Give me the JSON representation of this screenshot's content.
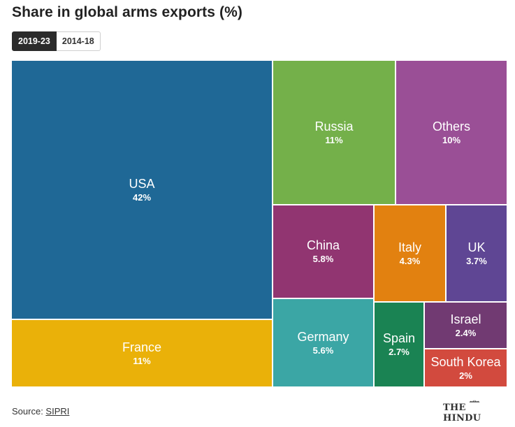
{
  "title": "Share in global arms exports (%)",
  "tabs": [
    {
      "label": "2019-23",
      "active": true
    },
    {
      "label": "2014-18",
      "active": false
    }
  ],
  "source": {
    "prefix": "Source: ",
    "link": "SIPRI"
  },
  "logo": {
    "text": "THE HINDU"
  },
  "chart_data": {
    "type": "treemap",
    "unit": "%",
    "items": [
      {
        "name": "USA",
        "label": "42%",
        "value": 42,
        "color": "#1f6896"
      },
      {
        "name": "France",
        "label": "11%",
        "value": 11,
        "color": "#eab109"
      },
      {
        "name": "Russia",
        "label": "11%",
        "value": 11,
        "color": "#74b04a"
      },
      {
        "name": "Others",
        "label": "10%",
        "value": 10,
        "color": "#9a4f96"
      },
      {
        "name": "China",
        "label": "5.8%",
        "value": 5.8,
        "color": "#913571"
      },
      {
        "name": "Germany",
        "label": "5.6%",
        "value": 5.6,
        "color": "#3ba6a5"
      },
      {
        "name": "Italy",
        "label": "4.3%",
        "value": 4.3,
        "color": "#e28110"
      },
      {
        "name": "UK",
        "label": "3.7%",
        "value": 3.7,
        "color": "#5f4694"
      },
      {
        "name": "Spain",
        "label": "2.7%",
        "value": 2.7,
        "color": "#1a8353"
      },
      {
        "name": "Israel",
        "label": "2.4%",
        "value": 2.4,
        "color": "#713a72"
      },
      {
        "name": "South Korea",
        "label": "2%",
        "value": 2,
        "color": "#d24a3e"
      }
    ]
  }
}
